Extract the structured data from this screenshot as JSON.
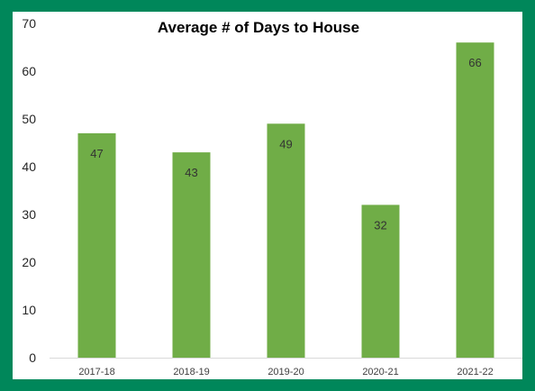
{
  "chart_data": {
    "type": "bar",
    "title": "Average # of Days to House",
    "categories": [
      "2017-18",
      "2018-19",
      "2019-20",
      "2020-21",
      "2021-22"
    ],
    "values": [
      47,
      43,
      49,
      32,
      66
    ],
    "ylim": [
      0,
      70
    ],
    "yticks": [
      0,
      10,
      20,
      30,
      40,
      50,
      60,
      70
    ],
    "xlabel": "",
    "ylabel": "",
    "grid": false,
    "legend": "none",
    "bar_color": "#70ad47",
    "frame_color": "#00875a",
    "data_labels": "inside-end"
  }
}
